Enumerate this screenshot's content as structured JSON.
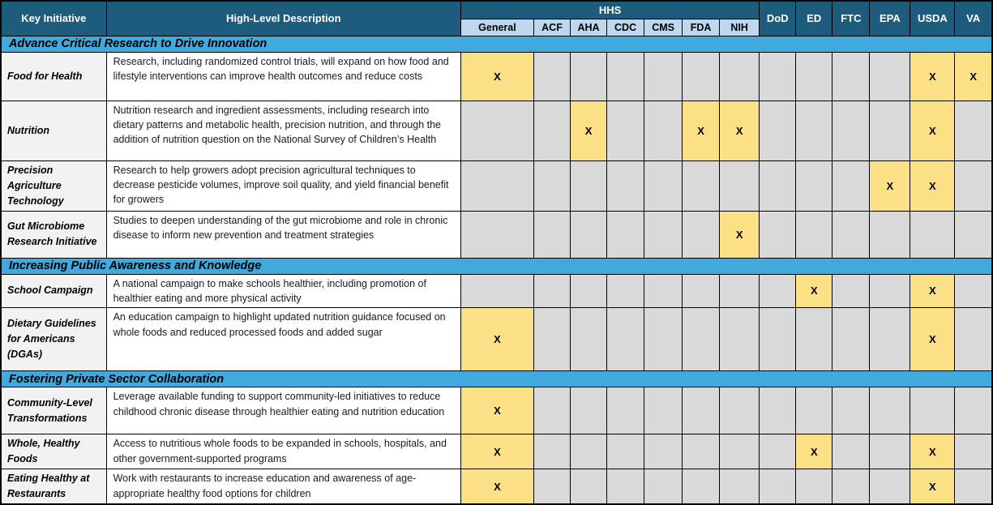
{
  "table": {
    "mark_symbol": "X",
    "header": {
      "key_initiative": "Key Initiative",
      "description": "High-Level Description",
      "hhs_group": "HHS",
      "hhs_subcolumns": [
        "General",
        "ACF",
        "AHA",
        "CDC",
        "CMS",
        "FDA",
        "NIH"
      ],
      "agencies": [
        "DoD",
        "ED",
        "FTC",
        "EPA",
        "USDA",
        "VA"
      ]
    },
    "matrix_columns": [
      "General",
      "ACF",
      "AHA",
      "CDC",
      "CMS",
      "FDA",
      "NIH",
      "DoD",
      "ED",
      "FTC",
      "EPA",
      "USDA",
      "VA"
    ],
    "sections": [
      {
        "title": "Advance Critical Research to Drive Innovation",
        "rows": [
          {
            "initiative": "Food for Health",
            "description": "Research, including randomized control trials, will expand on how food and lifestyle interventions can improve health outcomes and reduce costs",
            "marks": [
              "General",
              "USDA",
              "VA"
            ]
          },
          {
            "initiative": "Nutrition",
            "description": "Nutrition research and ingredient assessments, including research into dietary patterns and metabolic health, precision nutrition, and through the addition of nutrition question on the National Survey of Children’s Health",
            "marks": [
              "AHA",
              "FDA",
              "NIH",
              "USDA"
            ]
          },
          {
            "initiative": "Precision Agriculture Technology",
            "description": "Research to help growers adopt precision agricultural techniques to decrease pesticide volumes, improve soil quality, and yield financial benefit for growers",
            "marks": [
              "EPA",
              "USDA"
            ]
          },
          {
            "initiative": "Gut Microbiome Research Initiative",
            "description": "Studies to deepen understanding of the gut microbiome and role in chronic disease to inform new prevention and treatment strategies",
            "marks": [
              "NIH"
            ]
          }
        ]
      },
      {
        "title": "Increasing Public Awareness and Knowledge",
        "rows": [
          {
            "initiative": "School Campaign",
            "description": "A national campaign to make schools healthier, including promotion of healthier eating and more physical activity",
            "marks": [
              "ED",
              "USDA"
            ]
          },
          {
            "initiative": "Dietary Guidelines for Americans (DGAs)",
            "description": "An education campaign to highlight updated nutrition guidance focused on whole foods and reduced processed foods and added sugar",
            "marks": [
              "General",
              "USDA"
            ]
          }
        ]
      },
      {
        "title": "Fostering Private Sector Collaboration",
        "rows": [
          {
            "initiative": "Community-Level Transformations",
            "description": "Leverage available funding to support community-led initiatives to reduce childhood chronic disease through healthier eating and nutrition education",
            "marks": [
              "General"
            ]
          },
          {
            "initiative": "Whole, Healthy Foods",
            "description": "Access to nutritious whole foods to be expanded in schools, hospitals, and other government-supported programs",
            "marks": [
              "General",
              "ED",
              "USDA"
            ]
          },
          {
            "initiative": "Eating Healthy at Restaurants",
            "description": "Work with restaurants to increase education and awareness of age-appropriate healthy food options for children",
            "marks": [
              "General",
              "USDA"
            ]
          }
        ]
      }
    ],
    "colors": {
      "header_bg": "#1E5C7E",
      "subheader_bg": "#BDD7EE",
      "section_bg": "#41A9DC",
      "mark_bg": "#FCE085",
      "empty_bg": "#D9D9D9",
      "initiative_bg": "#F2F2F2"
    }
  }
}
